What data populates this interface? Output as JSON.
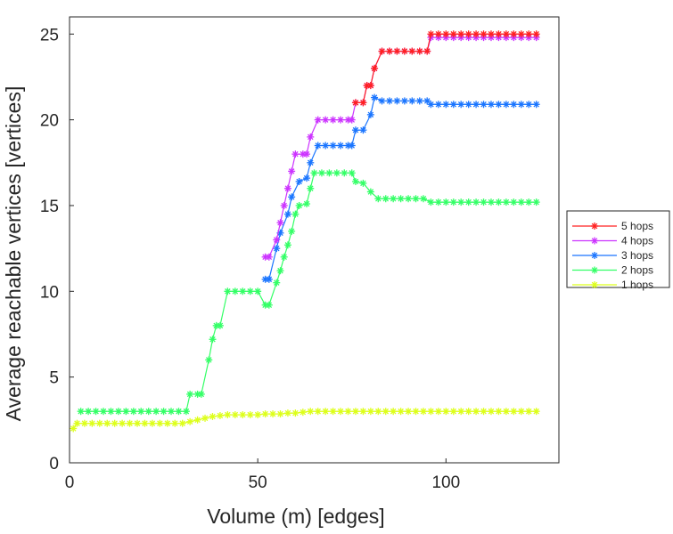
{
  "chart_data": {
    "type": "line",
    "title": "",
    "xlabel": "Volume (m) [edges]",
    "ylabel": "Average reachable vertices [vertices]",
    "xlim": [
      0,
      130
    ],
    "ylim": [
      0,
      26
    ],
    "xticks": [
      0,
      50,
      100
    ],
    "yticks": [
      0,
      5,
      10,
      15,
      20,
      25
    ],
    "grid": false,
    "legend_placement": "outside-right",
    "series": [
      {
        "name": "5 hops",
        "color": "#ff2020",
        "points": [
          [
            76,
            21
          ],
          [
            78,
            21
          ],
          [
            79,
            22
          ],
          [
            80,
            22
          ],
          [
            81,
            23
          ],
          [
            83,
            24
          ],
          [
            85,
            24
          ],
          [
            87,
            24
          ],
          [
            89,
            24
          ],
          [
            91,
            24
          ],
          [
            93,
            24
          ],
          [
            95,
            24
          ],
          [
            96,
            25
          ],
          [
            98,
            25
          ],
          [
            100,
            25
          ],
          [
            102,
            25
          ],
          [
            104,
            25
          ],
          [
            106,
            25
          ],
          [
            108,
            25
          ],
          [
            110,
            25
          ],
          [
            112,
            25
          ],
          [
            114,
            25
          ],
          [
            116,
            25
          ],
          [
            118,
            25
          ],
          [
            120,
            25
          ],
          [
            122,
            25
          ],
          [
            124,
            25
          ]
        ]
      },
      {
        "name": "4 hops",
        "color": "#cc33ff",
        "points": [
          [
            52,
            12
          ],
          [
            53,
            12
          ],
          [
            55,
            13
          ],
          [
            56,
            14
          ],
          [
            57,
            15
          ],
          [
            58,
            16
          ],
          [
            59,
            17
          ],
          [
            60,
            18
          ],
          [
            62,
            18
          ],
          [
            63,
            18
          ],
          [
            64,
            19
          ],
          [
            66,
            20
          ],
          [
            68,
            20
          ],
          [
            70,
            20
          ],
          [
            72,
            20
          ],
          [
            74,
            20
          ],
          [
            75,
            20
          ],
          [
            76,
            21
          ],
          [
            78,
            21
          ],
          [
            79,
            22
          ],
          [
            80,
            22
          ],
          [
            81,
            23
          ],
          [
            83,
            24
          ],
          [
            85,
            24
          ],
          [
            87,
            24
          ],
          [
            89,
            24
          ],
          [
            91,
            24
          ],
          [
            93,
            24
          ],
          [
            95,
            24
          ],
          [
            96,
            24.8
          ],
          [
            98,
            24.8
          ],
          [
            100,
            24.8
          ],
          [
            102,
            24.8
          ],
          [
            104,
            24.8
          ],
          [
            106,
            24.8
          ],
          [
            108,
            24.8
          ],
          [
            110,
            24.8
          ],
          [
            112,
            24.8
          ],
          [
            114,
            24.8
          ],
          [
            116,
            24.8
          ],
          [
            118,
            24.8
          ],
          [
            120,
            24.8
          ],
          [
            122,
            24.8
          ],
          [
            124,
            24.8
          ]
        ]
      },
      {
        "name": "3 hops",
        "color": "#1a75ff",
        "points": [
          [
            52,
            10.7
          ],
          [
            53,
            10.7
          ],
          [
            55,
            12.5
          ],
          [
            56,
            13.4
          ],
          [
            58,
            14.5
          ],
          [
            59,
            15.5
          ],
          [
            61,
            16.4
          ],
          [
            63,
            16.6
          ],
          [
            64,
            17.5
          ],
          [
            66,
            18.5
          ],
          [
            68,
            18.5
          ],
          [
            70,
            18.5
          ],
          [
            72,
            18.5
          ],
          [
            74,
            18.5
          ],
          [
            75,
            18.5
          ],
          [
            76,
            19.4
          ],
          [
            78,
            19.4
          ],
          [
            80,
            20.3
          ],
          [
            81,
            21.3
          ],
          [
            83,
            21.1
          ],
          [
            85,
            21.1
          ],
          [
            87,
            21.1
          ],
          [
            89,
            21.1
          ],
          [
            91,
            21.1
          ],
          [
            93,
            21.1
          ],
          [
            95,
            21.1
          ],
          [
            96,
            20.9
          ],
          [
            98,
            20.9
          ],
          [
            100,
            20.9
          ],
          [
            102,
            20.9
          ],
          [
            104,
            20.9
          ],
          [
            106,
            20.9
          ],
          [
            108,
            20.9
          ],
          [
            110,
            20.9
          ],
          [
            112,
            20.9
          ],
          [
            114,
            20.9
          ],
          [
            116,
            20.9
          ],
          [
            118,
            20.9
          ],
          [
            120,
            20.9
          ],
          [
            122,
            20.9
          ],
          [
            124,
            20.9
          ]
        ]
      },
      {
        "name": "2 hops",
        "color": "#33ff66",
        "points": [
          [
            3,
            3
          ],
          [
            5,
            3
          ],
          [
            7,
            3
          ],
          [
            9,
            3
          ],
          [
            11,
            3
          ],
          [
            13,
            3
          ],
          [
            15,
            3
          ],
          [
            17,
            3
          ],
          [
            19,
            3
          ],
          [
            21,
            3
          ],
          [
            23,
            3
          ],
          [
            25,
            3
          ],
          [
            27,
            3
          ],
          [
            29,
            3
          ],
          [
            31,
            3
          ],
          [
            32,
            4
          ],
          [
            34,
            4
          ],
          [
            35,
            4
          ],
          [
            37,
            6
          ],
          [
            38,
            7.2
          ],
          [
            39,
            8
          ],
          [
            40,
            8
          ],
          [
            42,
            10
          ],
          [
            44,
            10
          ],
          [
            46,
            10
          ],
          [
            48,
            10
          ],
          [
            50,
            10
          ],
          [
            52,
            9.2
          ],
          [
            53,
            9.2
          ],
          [
            55,
            10.5
          ],
          [
            56,
            11.2
          ],
          [
            57,
            12
          ],
          [
            58,
            12.7
          ],
          [
            59,
            13.5
          ],
          [
            60,
            14.5
          ],
          [
            61,
            15
          ],
          [
            63,
            15.1
          ],
          [
            64,
            16
          ],
          [
            65,
            16.9
          ],
          [
            67,
            16.9
          ],
          [
            69,
            16.9
          ],
          [
            71,
            16.9
          ],
          [
            73,
            16.9
          ],
          [
            75,
            16.9
          ],
          [
            76,
            16.4
          ],
          [
            78,
            16.3
          ],
          [
            80,
            15.8
          ],
          [
            82,
            15.4
          ],
          [
            84,
            15.4
          ],
          [
            86,
            15.4
          ],
          [
            88,
            15.4
          ],
          [
            90,
            15.4
          ],
          [
            92,
            15.4
          ],
          [
            94,
            15.4
          ],
          [
            96,
            15.2
          ],
          [
            98,
            15.2
          ],
          [
            100,
            15.2
          ],
          [
            102,
            15.2
          ],
          [
            104,
            15.2
          ],
          [
            106,
            15.2
          ],
          [
            108,
            15.2
          ],
          [
            110,
            15.2
          ],
          [
            112,
            15.2
          ],
          [
            114,
            15.2
          ],
          [
            116,
            15.2
          ],
          [
            118,
            15.2
          ],
          [
            120,
            15.2
          ],
          [
            122,
            15.2
          ],
          [
            124,
            15.2
          ]
        ]
      },
      {
        "name": "1 hops",
        "color": "#ddff1a",
        "points": [
          [
            1,
            2
          ],
          [
            2,
            2.3
          ],
          [
            4,
            2.3
          ],
          [
            6,
            2.3
          ],
          [
            8,
            2.3
          ],
          [
            10,
            2.3
          ],
          [
            12,
            2.3
          ],
          [
            14,
            2.3
          ],
          [
            16,
            2.3
          ],
          [
            18,
            2.3
          ],
          [
            20,
            2.3
          ],
          [
            22,
            2.3
          ],
          [
            24,
            2.3
          ],
          [
            26,
            2.3
          ],
          [
            28,
            2.3
          ],
          [
            30,
            2.3
          ],
          [
            32,
            2.4
          ],
          [
            34,
            2.5
          ],
          [
            36,
            2.6
          ],
          [
            38,
            2.7
          ],
          [
            40,
            2.75
          ],
          [
            42,
            2.8
          ],
          [
            44,
            2.8
          ],
          [
            46,
            2.8
          ],
          [
            48,
            2.8
          ],
          [
            50,
            2.8
          ],
          [
            52,
            2.85
          ],
          [
            54,
            2.85
          ],
          [
            56,
            2.85
          ],
          [
            58,
            2.9
          ],
          [
            60,
            2.9
          ],
          [
            62,
            2.95
          ],
          [
            64,
            3
          ],
          [
            66,
            3
          ],
          [
            68,
            3
          ],
          [
            70,
            3
          ],
          [
            72,
            3
          ],
          [
            74,
            3
          ],
          [
            76,
            3
          ],
          [
            78,
            3
          ],
          [
            80,
            3
          ],
          [
            82,
            3
          ],
          [
            84,
            3
          ],
          [
            86,
            3
          ],
          [
            88,
            3
          ],
          [
            90,
            3
          ],
          [
            92,
            3
          ],
          [
            94,
            3
          ],
          [
            96,
            3
          ],
          [
            98,
            3
          ],
          [
            100,
            3
          ],
          [
            102,
            3
          ],
          [
            104,
            3
          ],
          [
            106,
            3
          ],
          [
            108,
            3
          ],
          [
            110,
            3
          ],
          [
            112,
            3
          ],
          [
            114,
            3
          ],
          [
            116,
            3
          ],
          [
            118,
            3
          ],
          [
            120,
            3
          ],
          [
            122,
            3
          ],
          [
            124,
            3
          ]
        ]
      }
    ]
  }
}
